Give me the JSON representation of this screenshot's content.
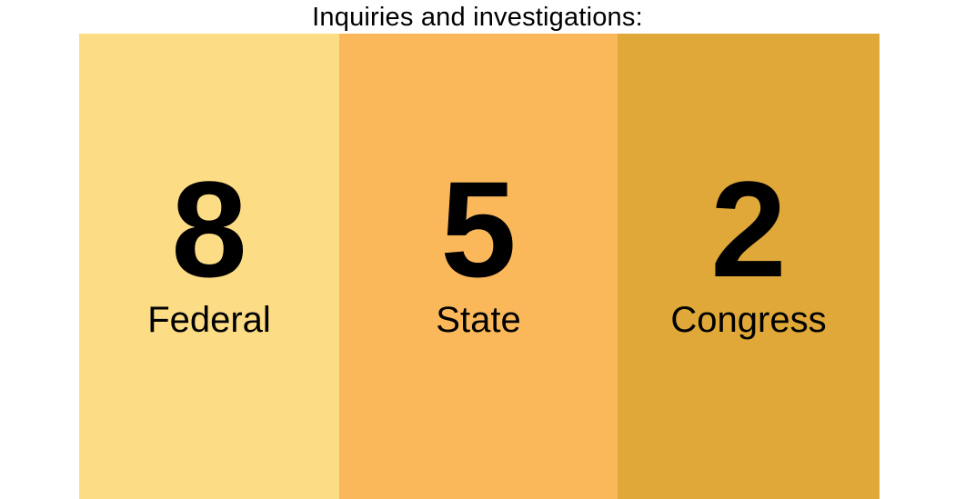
{
  "title": "Inquiries and investigations:",
  "panels": [
    {
      "count": "8",
      "label": "Federal",
      "color": "#fcdc84"
    },
    {
      "count": "5",
      "label": "State",
      "color": "#fab85a"
    },
    {
      "count": "2",
      "label": "Congress",
      "color": "#dfa838"
    }
  ]
}
